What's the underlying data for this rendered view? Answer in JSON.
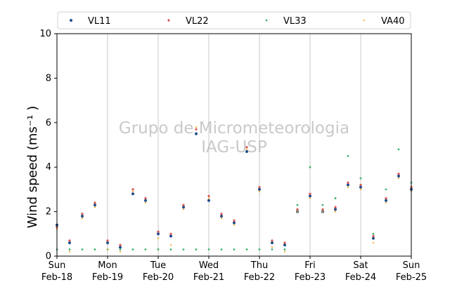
{
  "chart_data": {
    "type": "scatter",
    "title": "",
    "xlabel": "",
    "ylabel": "Wind speed (ms⁻¹ )",
    "ylim": [
      0,
      10
    ],
    "yticks": [
      0,
      2,
      4,
      6,
      8,
      10
    ],
    "xlim": [
      "2018-02-18",
      "2018-02-25"
    ],
    "xticks": [
      {
        "day": "Sun",
        "date": "Feb-18"
      },
      {
        "day": "Mon",
        "date": "Feb-19"
      },
      {
        "day": "Tue",
        "date": "Feb-20"
      },
      {
        "day": "Wed",
        "date": "Feb-21"
      },
      {
        "day": "Thu",
        "date": "Feb-22"
      },
      {
        "day": "Fri",
        "date": "Feb-23"
      },
      {
        "day": "Sat",
        "date": "Feb-24"
      },
      {
        "day": "Sun",
        "date": "Feb-25"
      }
    ],
    "grid": "vertical",
    "legend_position": "top",
    "watermark": [
      "Grupo de Micrometeorologia",
      "IAG-USP"
    ],
    "series": [
      {
        "name": "VL11",
        "color": "#1f4e8c",
        "x": [
          "2018-02-18 00:00",
          "2018-02-18 06:00",
          "2018-02-18 12:00",
          "2018-02-18 18:00",
          "2018-02-19 00:00",
          "2018-02-19 06:00",
          "2018-02-19 12:00",
          "2018-02-19 18:00",
          "2018-02-20 00:00",
          "2018-02-20 06:00",
          "2018-02-20 12:00",
          "2018-02-20 18:00",
          "2018-02-21 00:00",
          "2018-02-21 06:00",
          "2018-02-21 12:00",
          "2018-02-21 18:00",
          "2018-02-22 00:00",
          "2018-02-22 06:00",
          "2018-02-22 12:00",
          "2018-02-22 18:00",
          "2018-02-23 00:00",
          "2018-02-23 06:00",
          "2018-02-23 12:00",
          "2018-02-23 18:00",
          "2018-02-24 00:00",
          "2018-02-24 06:00",
          "2018-02-24 12:00",
          "2018-02-24 18:00",
          "2018-02-25 00:00"
        ],
        "y": [
          1.4,
          0.6,
          1.8,
          2.3,
          0.6,
          0.4,
          2.8,
          2.5,
          1.0,
          0.9,
          2.2,
          5.5,
          2.5,
          1.8,
          1.5,
          4.7,
          3.0,
          0.6,
          0.5,
          2.0,
          2.7,
          2.0,
          2.1,
          3.2,
          3.1,
          0.8,
          2.5,
          3.6,
          3.0
        ]
      },
      {
        "name": "VL22",
        "color": "#d9534f",
        "x": [
          "2018-02-18 00:00",
          "2018-02-18 06:00",
          "2018-02-18 12:00",
          "2018-02-18 18:00",
          "2018-02-19 00:00",
          "2018-02-19 06:00",
          "2018-02-19 12:00",
          "2018-02-19 18:00",
          "2018-02-20 00:00",
          "2018-02-20 06:00",
          "2018-02-20 12:00",
          "2018-02-20 18:00",
          "2018-02-21 00:00",
          "2018-02-21 06:00",
          "2018-02-21 12:00",
          "2018-02-21 18:00",
          "2018-02-22 00:00",
          "2018-02-22 06:00",
          "2018-02-22 12:00",
          "2018-02-22 18:00",
          "2018-02-23 00:00",
          "2018-02-23 06:00",
          "2018-02-23 12:00",
          "2018-02-23 18:00",
          "2018-02-24 00:00",
          "2018-02-24 06:00",
          "2018-02-24 12:00",
          "2018-02-24 18:00",
          "2018-02-25 00:00"
        ],
        "y": [
          1.3,
          0.7,
          1.9,
          2.4,
          0.7,
          0.5,
          3.0,
          2.6,
          1.1,
          1.0,
          2.3,
          5.7,
          2.7,
          1.9,
          1.6,
          4.9,
          3.1,
          0.7,
          0.6,
          2.1,
          2.8,
          2.1,
          2.2,
          3.3,
          3.2,
          0.9,
          2.6,
          3.7,
          3.1
        ]
      },
      {
        "name": "VL33",
        "color": "#3cb371",
        "x": [
          "2018-02-18 00:00",
          "2018-02-18 06:00",
          "2018-02-18 12:00",
          "2018-02-18 18:00",
          "2018-02-19 00:00",
          "2018-02-19 06:00",
          "2018-02-19 12:00",
          "2018-02-19 18:00",
          "2018-02-20 00:00",
          "2018-02-20 06:00",
          "2018-02-20 12:00",
          "2018-02-20 18:00",
          "2018-02-21 00:00",
          "2018-02-21 06:00",
          "2018-02-21 12:00",
          "2018-02-21 18:00",
          "2018-02-22 00:00",
          "2018-02-22 06:00",
          "2018-02-22 12:00",
          "2018-02-22 18:00",
          "2018-02-23 00:00",
          "2018-02-23 06:00",
          "2018-02-23 12:00",
          "2018-02-23 18:00",
          "2018-02-24 00:00",
          "2018-02-24 06:00",
          "2018-02-24 12:00",
          "2018-02-24 18:00",
          "2018-02-25 00:00"
        ],
        "y": [
          0.3,
          0.3,
          0.3,
          0.3,
          0.3,
          0.3,
          0.3,
          0.3,
          0.3,
          0.3,
          0.3,
          0.3,
          0.3,
          0.3,
          0.3,
          0.3,
          0.3,
          0.3,
          0.3,
          2.3,
          4.0,
          2.3,
          2.6,
          4.5,
          3.5,
          1.0,
          3.0,
          4.8,
          3.3
        ]
      },
      {
        "name": "VA40",
        "color": "#f5a623",
        "x": [
          "2018-02-18 00:00",
          "2018-02-18 06:00",
          "2018-02-18 12:00",
          "2018-02-18 18:00",
          "2018-02-19 00:00",
          "2018-02-19 06:00",
          "2018-02-19 12:00",
          "2018-02-19 18:00",
          "2018-02-20 00:00",
          "2018-02-20 06:00",
          "2018-02-20 12:00",
          "2018-02-20 18:00",
          "2018-02-21 00:00",
          "2018-02-21 06:00",
          "2018-02-21 12:00",
          "2018-02-21 18:00",
          "2018-02-22 00:00",
          "2018-02-22 06:00",
          "2018-02-22 12:00",
          "2018-02-22 18:00",
          "2018-02-23 00:00",
          "2018-02-23 06:00",
          "2018-02-23 12:00",
          "2018-02-23 18:00",
          "2018-02-24 00:00",
          "2018-02-24 06:00",
          "2018-02-24 12:00",
          "2018-02-24 18:00",
          "2018-02-25 00:00"
        ],
        "y": [
          1.2,
          0.2,
          1.7,
          2.2,
          0.3,
          0.2,
          2.9,
          2.4,
          0.8,
          0.5,
          2.1,
          5.8,
          2.6,
          1.7,
          1.4,
          4.8,
          2.9,
          0.4,
          0.2,
          2.0,
          2.6,
          2.0,
          2.0,
          3.1,
          3.0,
          0.6,
          2.4,
          3.5,
          2.9
        ]
      }
    ]
  }
}
